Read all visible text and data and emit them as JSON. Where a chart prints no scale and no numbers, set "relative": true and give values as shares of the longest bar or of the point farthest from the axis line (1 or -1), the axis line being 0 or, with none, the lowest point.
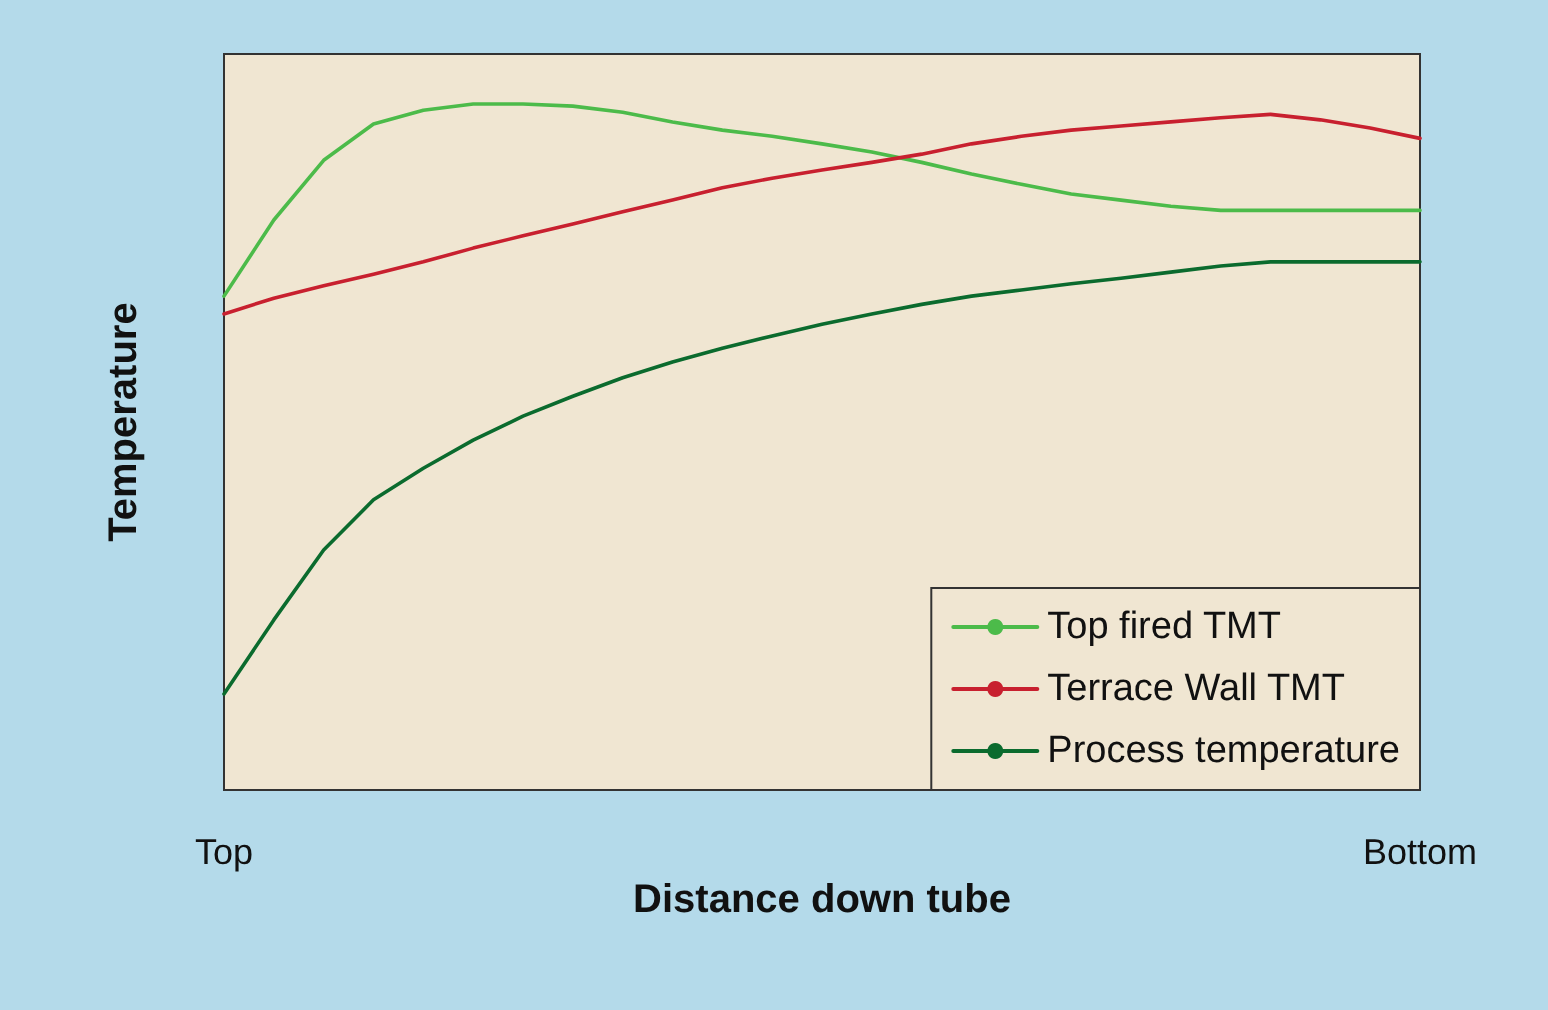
{
  "chart_data": {
    "type": "line",
    "relative": true,
    "xlabel": "Distance down tube",
    "ylabel": "Temperature",
    "categories": [
      "Top",
      null,
      null,
      null,
      null,
      null,
      null,
      null,
      null,
      null,
      null,
      null,
      null,
      null,
      null,
      null,
      null,
      null,
      null,
      null,
      null,
      null,
      null,
      null,
      "Bottom"
    ],
    "series": [
      {
        "name": "Top fired TMT",
        "color": "#4cbb4a",
        "values": [
          0.72,
          0.831,
          0.918,
          0.971,
          0.991,
          1,
          1,
          0.997,
          0.988,
          0.974,
          0.962,
          0.953,
          0.942,
          0.93,
          0.915,
          0.898,
          0.883,
          0.869,
          0.86,
          0.851,
          0.845,
          0.845,
          0.845,
          0.845,
          0.845
        ]
      },
      {
        "name": "Terrace Wall TMT",
        "color": "#c8202f",
        "values": [
          0.694,
          0.717,
          0.735,
          0.752,
          0.77,
          0.79,
          0.808,
          0.825,
          0.843,
          0.86,
          0.878,
          0.892,
          0.904,
          0.915,
          0.927,
          0.942,
          0.953,
          0.962,
          0.968,
          0.974,
          0.98,
          0.985,
          0.977,
          0.965,
          0.95
        ]
      },
      {
        "name": "Process temperature",
        "color": "#0b6b2e",
        "values": [
          0.14,
          0.248,
          0.35,
          0.423,
          0.469,
          0.51,
          0.545,
          0.574,
          0.601,
          0.624,
          0.644,
          0.662,
          0.679,
          0.694,
          0.708,
          0.72,
          0.729,
          0.738,
          0.746,
          0.755,
          0.764,
          0.77,
          0.77,
          0.77,
          0.77
        ]
      }
    ],
    "legend": "bottom right",
    "grid": false,
    "marker": "none",
    "line_style": "solid"
  }
}
